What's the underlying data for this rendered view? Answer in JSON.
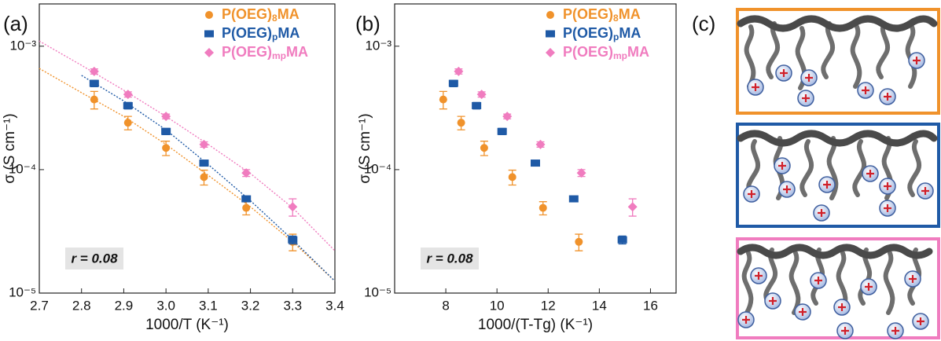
{
  "panel_c": {
    "label": "(c)"
  },
  "chart_data": [
    {
      "type": "scatter",
      "panel_label": "(a)",
      "xlabel": "1000/T (K⁻¹)",
      "ylabel": "σ (S cm⁻¹)",
      "xlim": [
        2.7,
        3.4
      ],
      "xticks": [
        2.7,
        2.8,
        2.9,
        {
          "value": 3,
          "label": "3.0"
        },
        3.1,
        3.2,
        3.3,
        3.4
      ],
      "ylim": [
        1e-05,
        0.0022
      ],
      "log_y": true,
      "yticks": [
        {
          "value": 1e-05,
          "label": "10⁻⁵"
        },
        {
          "value": 0.0001,
          "label": "10⁻⁴"
        },
        {
          "value": 0.001,
          "label": "10⁻³"
        }
      ],
      "legend_position": "upper right",
      "annotation": "r = 0.08",
      "series": [
        {
          "name": "P(OEG)8MA",
          "color": "#f0922b",
          "marker": "circle",
          "x": [
            2.83,
            2.91,
            3.0,
            3.09,
            3.19,
            3.3
          ],
          "values": [
            0.00037,
            0.00024,
            0.00015,
            8.7e-05,
            4.9e-05,
            2.6e-05
          ],
          "errors": [
            6e-05,
            3e-05,
            2e-05,
            1.2e-05,
            6e-06,
            4e-06
          ]
        },
        {
          "name": "P(OEG)pMA",
          "color": "#1f5aa6",
          "marker": "square",
          "x": [
            2.83,
            2.91,
            3.0,
            3.09,
            3.19,
            3.3
          ],
          "values": [
            0.0005,
            0.00033,
            0.000204,
            0.000113,
            5.8e-05,
            2.7e-05
          ],
          "errors": [
            3e-05,
            2e-05,
            1.2e-05,
            6e-06,
            3e-06,
            2e-06
          ]
        },
        {
          "name": "P(OEG)mpMA",
          "color": "#f07cbf",
          "marker": "diamond",
          "x": [
            2.83,
            2.91,
            3.0,
            3.09,
            3.19,
            3.3
          ],
          "values": [
            0.000625,
            0.000407,
            0.00027,
            0.00016,
            9.4e-05,
            5e-05
          ],
          "errors": [
            3e-05,
            2e-05,
            1.2e-05,
            8e-06,
            6e-06,
            8e-06
          ]
        }
      ],
      "fits": [
        {
          "color": "#f0922b",
          "x": [
            2.7,
            2.8,
            2.9,
            3.0,
            3.1,
            3.2,
            3.3,
            3.4
          ],
          "values": [
            0.00066,
            0.00042,
            0.00027,
            0.00016,
            9e-05,
            5e-05,
            2.6e-05,
            1.25e-05
          ]
        },
        {
          "color": "#1f5aa6",
          "x": [
            2.8,
            2.9,
            3.0,
            3.1,
            3.2,
            3.3,
            3.4
          ],
          "values": [
            0.00058,
            0.00036,
            0.00021,
            0.00011,
            5.6e-05,
            2.7e-05,
            1.25e-05
          ]
        },
        {
          "color": "#f07cbf",
          "x": [
            2.7,
            2.8,
            2.9,
            3.0,
            3.1,
            3.2,
            3.3,
            3.4
          ],
          "values": [
            0.0011,
            0.0007,
            0.00044,
            0.00027,
            0.00016,
            9.3e-05,
            4.9e-05,
            2.2e-05
          ]
        }
      ]
    },
    {
      "type": "scatter",
      "panel_label": "(b)",
      "xlabel": "1000/(T-Tg) (K⁻¹)",
      "ylabel": "σ (S cm⁻¹)",
      "xlim": [
        6,
        17
      ],
      "xticks": [
        8,
        10,
        12,
        14,
        16
      ],
      "ylim": [
        1e-05,
        0.0022
      ],
      "log_y": true,
      "yticks": [
        {
          "value": 1e-05,
          "label": "10⁻⁵"
        },
        {
          "value": 0.0001,
          "label": "10⁻⁴"
        },
        {
          "value": 0.001,
          "label": "10⁻³"
        }
      ],
      "legend_position": "upper right",
      "annotation": "r = 0.08",
      "series": [
        {
          "name": "P(OEG)8MA",
          "color": "#f0922b",
          "marker": "circle",
          "x": [
            7.9,
            8.6,
            9.5,
            10.6,
            11.8,
            13.2
          ],
          "values": [
            0.00037,
            0.00024,
            0.00015,
            8.7e-05,
            4.9e-05,
            2.6e-05
          ],
          "errors": [
            6e-05,
            3e-05,
            2e-05,
            1.2e-05,
            6e-06,
            4e-06
          ]
        },
        {
          "name": "P(OEG)pMA",
          "color": "#1f5aa6",
          "marker": "square",
          "x": [
            8.3,
            9.2,
            10.2,
            11.5,
            13.0,
            14.9
          ],
          "values": [
            0.0005,
            0.00033,
            0.000204,
            0.000113,
            5.8e-05,
            2.7e-05
          ],
          "errors": [
            3e-05,
            2e-05,
            1.2e-05,
            6e-06,
            3e-06,
            2e-06
          ]
        },
        {
          "name": "P(OEG)mpMA",
          "color": "#f07cbf",
          "marker": "diamond",
          "x": [
            8.5,
            9.4,
            10.4,
            11.7,
            13.3,
            15.3
          ],
          "values": [
            0.000625,
            0.000407,
            0.00027,
            0.00016,
            9.4e-05,
            5e-05
          ],
          "errors": [
            3e-05,
            2e-05,
            1.2e-05,
            8e-06,
            6e-06,
            8e-06
          ]
        }
      ]
    }
  ]
}
